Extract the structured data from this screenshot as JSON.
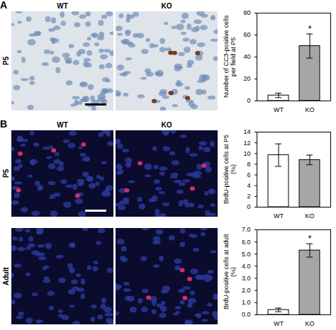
{
  "figure": {
    "panels": [
      {
        "label": "A",
        "rows": [
          "P5"
        ],
        "columns": [
          "WT",
          "KO"
        ]
      },
      {
        "label": "B",
        "rows": [
          "P5",
          "Adult"
        ],
        "columns": [
          "WT",
          "KO"
        ]
      }
    ]
  },
  "chart_data": [
    {
      "type": "bar",
      "y_label": "Number of CC3-positive cells per field at P5",
      "categories": [
        "WT",
        "KO"
      ],
      "values": [
        5,
        50
      ],
      "errors": [
        2,
        11
      ],
      "colors": [
        "#ffffff",
        "#a6a6a6"
      ],
      "ylim": [
        0,
        80
      ],
      "yticks": [
        0,
        20,
        40,
        60,
        80
      ],
      "annotations": [
        {
          "x": "KO",
          "text": "*"
        }
      ]
    },
    {
      "type": "bar",
      "y_label": "BrdU-positive cells at P5 (%)",
      "categories": [
        "WT",
        "KO"
      ],
      "values": [
        9.7,
        8.8
      ],
      "errors": [
        2.1,
        0.9
      ],
      "colors": [
        "#ffffff",
        "#a6a6a6"
      ],
      "ylim": [
        0,
        14
      ],
      "yticks": [
        0,
        2,
        4,
        6,
        8,
        10,
        12,
        14
      ]
    },
    {
      "type": "bar",
      "y_label": "BrdU-positive cells at adult (%)",
      "categories": [
        "WT",
        "KO"
      ],
      "values": [
        0.4,
        5.3
      ],
      "errors": [
        0.15,
        0.55
      ],
      "colors": [
        "#ffffff",
        "#a6a6a6"
      ],
      "ylim": [
        0,
        7
      ],
      "yticks": [
        0,
        1,
        2,
        3,
        4,
        5,
        6,
        7
      ],
      "annotations": [
        {
          "x": "KO",
          "text": "*"
        }
      ]
    }
  ]
}
